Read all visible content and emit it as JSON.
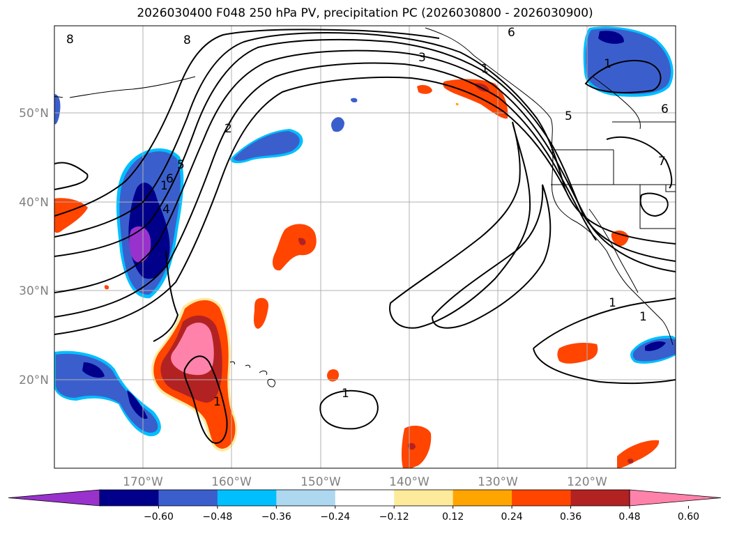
{
  "title": "2026030400 F048 250 hPa PV, precipitation PC (2026030800 - 2026030900)",
  "latitude_labels": [
    "50°N",
    "40°N",
    "30°N",
    "20°N"
  ],
  "longitude_labels": [
    "170°W",
    "160°W",
    "150°W",
    "140°W",
    "130°W",
    "120°W"
  ],
  "colorbar": {
    "tick_labels": [
      "−0.60",
      "−0.48",
      "−0.36",
      "−0.24",
      "−0.12",
      "0.12",
      "0.24",
      "0.36",
      "0.48",
      "0.60"
    ],
    "colors": [
      "#9932cc",
      "#00008b",
      "#3a5fcd",
      "#00bfff",
      "#add8f0",
      "#ffffff",
      "#fdea9b",
      "#ffa500",
      "#ff4500",
      "#b22222",
      "#ff82ab"
    ]
  },
  "contour_labels": [
    "8",
    "8",
    "6",
    "3",
    "2",
    "5",
    "6",
    "7",
    "1",
    "1",
    "1",
    "1",
    "1",
    "1",
    "1",
    "6",
    "5",
    "4"
  ],
  "colors": {
    "grid": "#b0b0b0",
    "coast": "#000000",
    "contour": "#000000"
  }
}
